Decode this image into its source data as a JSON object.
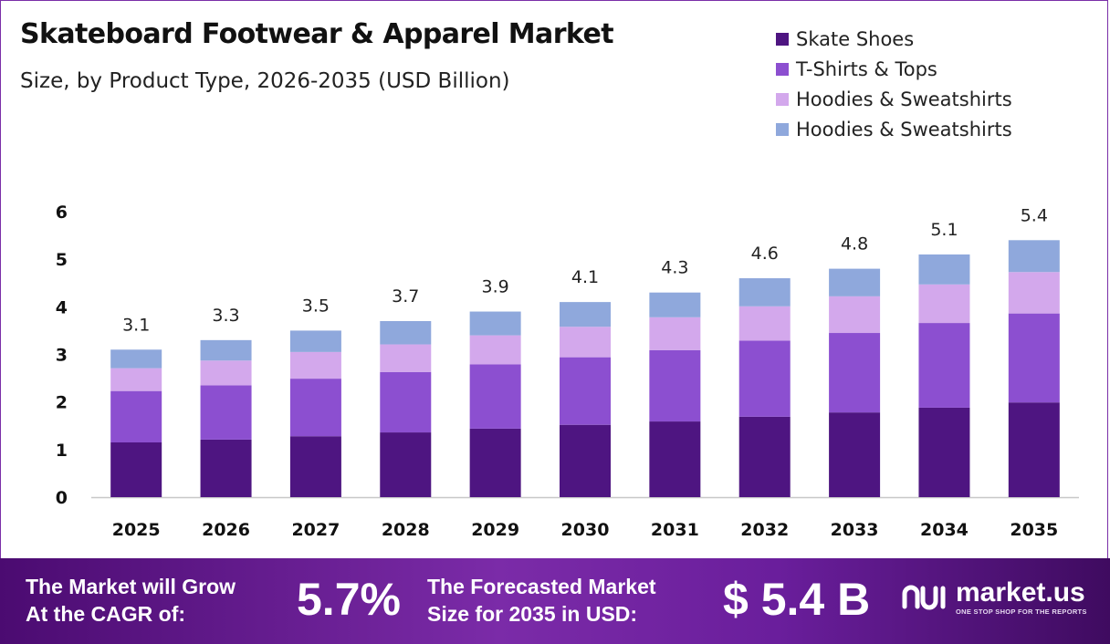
{
  "chart_data": {
    "type": "bar",
    "stacked": true,
    "title": "Skateboard Footwear & Apparel Market",
    "subtitle": "Size, by Product Type, 2026-2035 (USD Billion)",
    "xlabel": "",
    "ylabel": "",
    "ylim": [
      0,
      6
    ],
    "yticks": [
      0,
      1,
      2,
      3,
      4,
      5,
      6
    ],
    "categories": [
      "2025",
      "2026",
      "2027",
      "2028",
      "2029",
      "2030",
      "2031",
      "2032",
      "2033",
      "2034",
      "2035"
    ],
    "totals": [
      3.1,
      3.3,
      3.5,
      3.7,
      3.9,
      4.1,
      4.3,
      4.6,
      4.8,
      5.1,
      5.4
    ],
    "total_labels": [
      "3.1",
      "3.3",
      "3.5",
      "3.7",
      "3.9",
      "4.1",
      "4.3",
      "4.6",
      "4.8",
      "5.1",
      "5.4"
    ],
    "series": [
      {
        "name": "Skate Shoes",
        "color": "#4e1581",
        "values": [
          1.15,
          1.21,
          1.28,
          1.36,
          1.44,
          1.52,
          1.59,
          1.69,
          1.78,
          1.88,
          1.99
        ]
      },
      {
        "name": "T-Shirts & Tops",
        "color": "#8c4fd0",
        "values": [
          1.08,
          1.14,
          1.21,
          1.27,
          1.35,
          1.42,
          1.5,
          1.6,
          1.67,
          1.78,
          1.87
        ]
      },
      {
        "name": "Hoodies & Sweatshirts",
        "color": "#d3a8ec",
        "values": [
          0.48,
          0.52,
          0.56,
          0.58,
          0.61,
          0.64,
          0.69,
          0.72,
          0.77,
          0.81,
          0.87
        ]
      },
      {
        "name": "Hoodies & Sweatshirts",
        "color": "#8fa8dc",
        "values": [
          0.39,
          0.43,
          0.45,
          0.49,
          0.5,
          0.52,
          0.52,
          0.59,
          0.58,
          0.63,
          0.67
        ]
      }
    ]
  },
  "footer": {
    "cagr_line1": "The Market will Grow",
    "cagr_line2": "At the CAGR of:",
    "cagr_value": "5.7%",
    "forecast_line1": "The Forecasted Market",
    "forecast_line2": "Size for 2035 in USD:",
    "forecast_value": "$ 5.4 B",
    "brand_name": "market.us",
    "brand_tagline": "ONE STOP SHOP FOR THE REPORTS"
  },
  "colors": {
    "footer_bg": "#5a1690",
    "axis_line": "#c8c8c8",
    "text": "#222222"
  }
}
